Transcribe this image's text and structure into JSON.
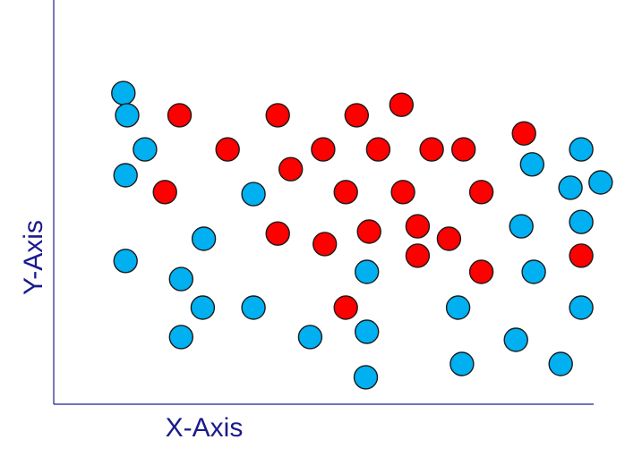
{
  "chart_data": {
    "type": "scatter",
    "xlabel": "X-Axis",
    "ylabel": "Y-Axis",
    "xlim": [
      0,
      100
    ],
    "ylim": [
      0,
      100
    ],
    "grid": false,
    "ticks": false,
    "series": [
      {
        "color": "#00b0f0",
        "points": [
          [
            12.9,
            77.3
          ],
          [
            13.6,
            71.8
          ],
          [
            16.9,
            63.3
          ],
          [
            13.3,
            56.9
          ],
          [
            13.3,
            35.6
          ],
          [
            23.6,
            31.1
          ],
          [
            27.8,
            41.1
          ],
          [
            27.6,
            24.0
          ],
          [
            23.6,
            16.7
          ],
          [
            37.0,
            52.2
          ],
          [
            37.0,
            24.0
          ],
          [
            47.5,
            16.7
          ],
          [
            58.0,
            32.9
          ],
          [
            58.0,
            18.0
          ],
          [
            57.8,
            6.7
          ],
          [
            74.9,
            24.0
          ],
          [
            75.6,
            10.0
          ],
          [
            85.6,
            16.0
          ],
          [
            86.6,
            44.2
          ],
          [
            88.9,
            32.9
          ],
          [
            93.9,
            10.0
          ],
          [
            88.6,
            59.6
          ],
          [
            97.7,
            63.3
          ],
          [
            95.7,
            53.8
          ],
          [
            101.3,
            55.1
          ],
          [
            97.7,
            45.3
          ],
          [
            97.7,
            24.0
          ]
        ]
      },
      {
        "color": "#ff0000",
        "points": [
          [
            23.3,
            71.8
          ],
          [
            32.2,
            63.3
          ],
          [
            20.6,
            52.7
          ],
          [
            41.5,
            71.8
          ],
          [
            43.9,
            58.4
          ],
          [
            49.9,
            63.3
          ],
          [
            56.1,
            71.8
          ],
          [
            64.4,
            74.4
          ],
          [
            60.1,
            63.3
          ],
          [
            70.0,
            63.3
          ],
          [
            75.9,
            63.3
          ],
          [
            87.1,
            67.3
          ],
          [
            54.1,
            52.7
          ],
          [
            64.7,
            52.7
          ],
          [
            79.2,
            52.7
          ],
          [
            41.5,
            42.4
          ],
          [
            50.2,
            39.8
          ],
          [
            58.4,
            42.9
          ],
          [
            67.4,
            44.2
          ],
          [
            67.4,
            36.9
          ],
          [
            73.2,
            41.1
          ],
          [
            79.2,
            32.9
          ],
          [
            54.1,
            24.0
          ],
          [
            97.7,
            36.9
          ]
        ]
      }
    ]
  }
}
